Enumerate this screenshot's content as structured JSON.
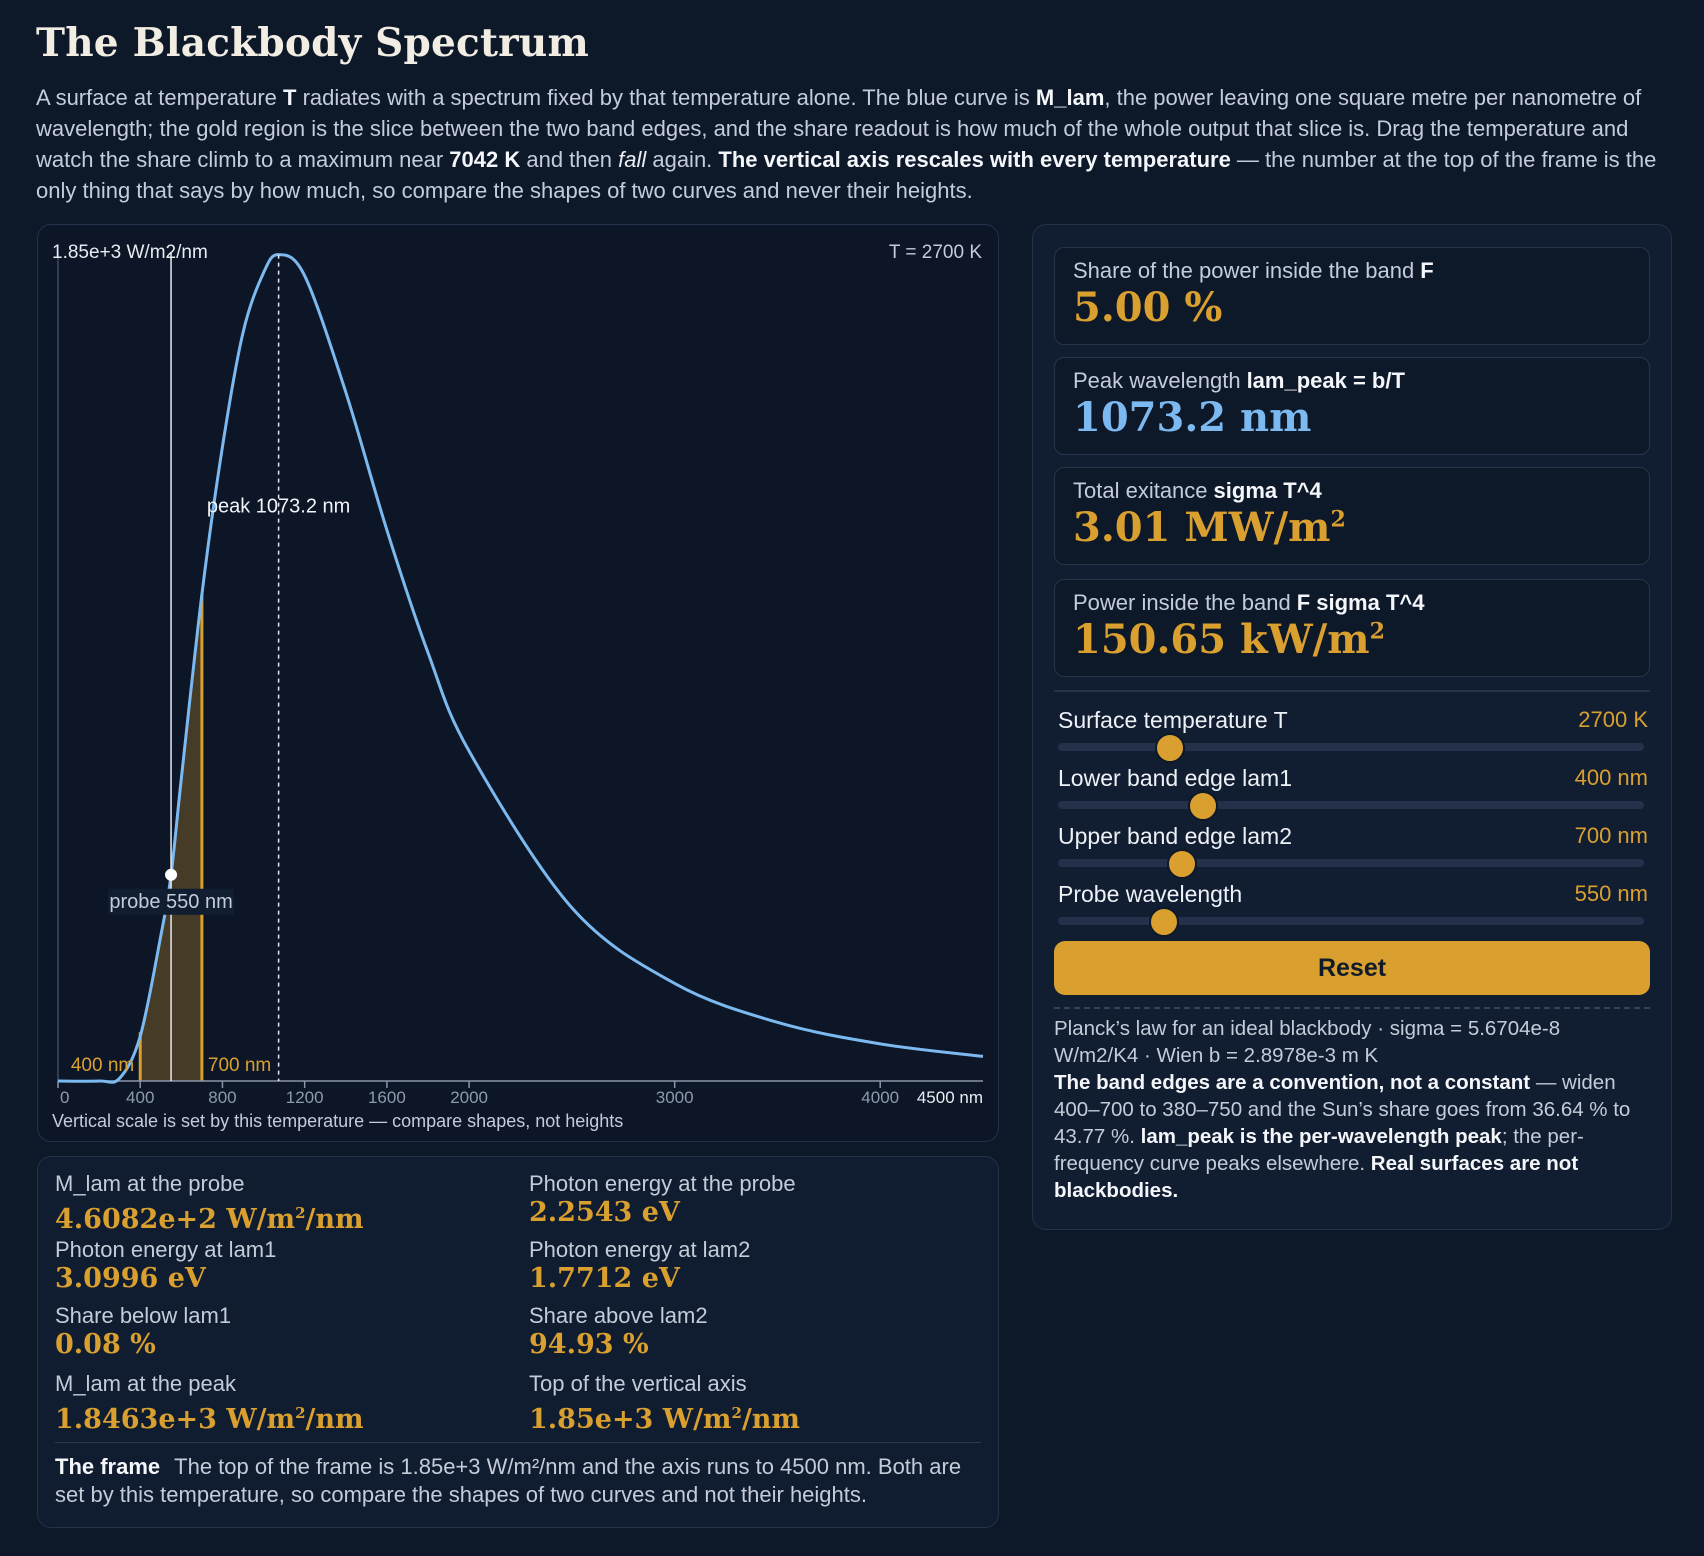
{
  "title": "The Blackbody Spectrum",
  "intro": {
    "t1": "A surface at temperature ",
    "t2": "T",
    "t3": " radiates with a spectrum fixed by that temperature alone. The blue curve is ",
    "t4": "M_lam",
    "t5": ", the power leaving one square metre per nanometre of wavelength; the gold region is the slice between the two band edges, and the share readout is how much of the whole output that slice is. Drag the temperature and watch the share climb to a maximum near ",
    "t6": "7042 K",
    "t7": " and then ",
    "t8": "fall",
    "t9": " again. ",
    "t10": "The vertical axis rescales with every temperature",
    "t11": " — the number at the top of the frame is the only thing that says by how much, so compare the shapes of two curves and never their heights."
  },
  "chart": {
    "ymax_label": "1.85e+3 W/m2/nm",
    "temp_label": "T = 2700 K",
    "peak_label": "peak 1073.2 nm",
    "probe_label": "probe 550 nm",
    "lam1_label": "400 nm",
    "lam2_label": "700 nm",
    "caption": "Vertical scale is set by this temperature — compare shapes, not heights",
    "x_end_label": "4500 nm",
    "x_ticks": [
      "0",
      "400",
      "800",
      "1200",
      "1600",
      "2000",
      "3000",
      "4000"
    ],
    "colors": {
      "curve": "#7cb9f0",
      "band": "#d9a030",
      "band_fill": "#4a3d26"
    }
  },
  "chart_data": {
    "type": "line",
    "title": "",
    "xlabel": "",
    "ylabel": "",
    "x_unit": "nm",
    "y_unit": "W/m2/nm",
    "xlim": [
      0,
      4500
    ],
    "ylim": [
      0,
      1850
    ],
    "x_ticks": [
      0,
      400,
      800,
      1200,
      1600,
      2000,
      3000,
      4000
    ],
    "series": [
      {
        "x": [
          200,
          300,
          400,
          500,
          550,
          600,
          700,
          800,
          900,
          1000,
          1073.2,
          1200,
          1400,
          1600,
          1800,
          2000,
          2500,
          3000,
          3500,
          4000,
          4500
        ],
        "y": [
          0.0,
          6.3,
          100.0,
          324,
          460.8,
          676,
          1087,
          1417,
          1672,
          1806,
          1846.3,
          1799,
          1539,
          1231,
          957,
          737,
          387,
          218,
          131,
          83,
          55
        ]
      }
    ],
    "band": [
      400,
      700
    ],
    "probe": 550,
    "peak": 1073.2
  },
  "readouts": {
    "share": {
      "label": "Share of the power inside the band",
      "symbol": "F",
      "value": "5.00 %"
    },
    "peak": {
      "label": "Peak wavelength",
      "symbol": "lam_peak = b/T",
      "value": "1073.2 nm"
    },
    "total": {
      "label": "Total exitance",
      "symbol": "sigma T^4",
      "value": "3.01 MW/m",
      "exp": "2"
    },
    "band_power": {
      "label": "Power inside the band",
      "symbol": "F sigma T^4",
      "value": "150.65 kW/m",
      "exp": "2"
    }
  },
  "sliders": [
    {
      "name": "Surface temperature T",
      "value": "2700 K",
      "fraction": 0.19
    },
    {
      "name": "Lower band edge lam1",
      "value": "400 nm",
      "fraction": 0.245
    },
    {
      "name": "Upper band edge lam2",
      "value": "700 nm",
      "fraction": 0.21
    },
    {
      "name": "Probe wavelength",
      "value": "550 nm",
      "fraction": 0.18
    }
  ],
  "reset_label": "Reset",
  "footnote": {
    "f1": "Planck’s law for an ideal blackbody · sigma = 5.6704e-8 W/m2/K4 · Wien b = 2.8978e-3 m K",
    "f2": "The band edges are a convention, not a constant",
    "f3": " — widen 400–700 to 380–750 and the Sun’s share goes from 36.64 % to 43.77 %. ",
    "f4": "lam_peak is the per-wavelength peak",
    "f5": "; the per-frequency curve peaks elsewhere. ",
    "f6": "Real surfaces are not blackbodies."
  },
  "stats": {
    "probe_m": {
      "label": "M_lam at the probe",
      "value": "4.6082e+2 W/m",
      "exp": "2",
      "tail": "/nm"
    },
    "probe_e": {
      "label": "Photon energy at the probe",
      "value": "2.2543 eV"
    },
    "lam1_e": {
      "label": "Photon energy at lam1",
      "value": "3.0996 eV"
    },
    "lam2_e": {
      "label": "Photon energy at lam2",
      "value": "1.7712 eV"
    },
    "below": {
      "label": "Share below lam1",
      "value": "0.08 %"
    },
    "above": {
      "label": "Share above lam2",
      "value": "94.93 %"
    },
    "peak_m": {
      "label": "M_lam at the peak",
      "value": "1.8463e+3 W/m",
      "exp": "2",
      "tail": "/nm"
    },
    "top_axis": {
      "label": "Top of the vertical axis",
      "value": "1.85e+3 W/m",
      "exp": "2",
      "tail": "/nm"
    }
  },
  "frame_note": {
    "title": "The frame",
    "text": "The top of the frame is 1.85e+3 W/m²/nm and the axis runs to 4500 nm. Both are set by this temperature, so compare the shapes of two curves and not their heights."
  }
}
